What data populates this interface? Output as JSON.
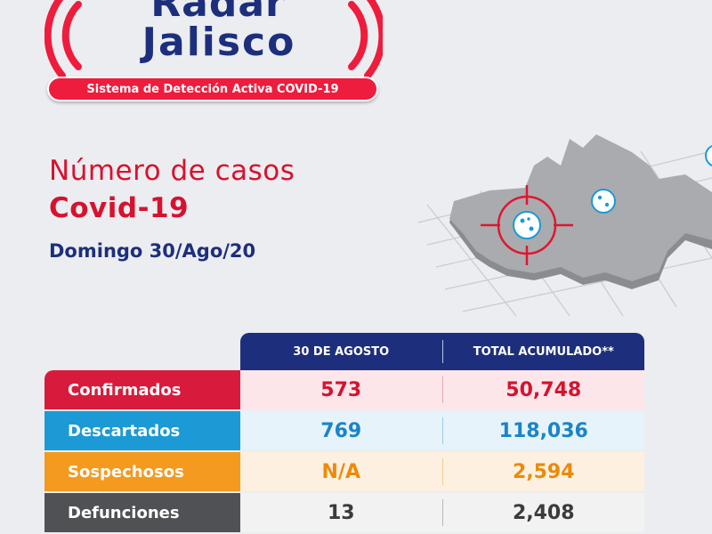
{
  "logo": {
    "word1": "Radar",
    "word2": "Jalisco",
    "tagline": "Sistema de Detección Activa COVID-19"
  },
  "heading": {
    "line1": "Número de casos",
    "line2": "Covid-19",
    "date": "Domingo 30/Ago/20"
  },
  "table": {
    "headers": [
      "30 DE AGOSTO",
      "TOTAL ACUMULADO**"
    ],
    "rows": [
      {
        "label": "Confirmados",
        "day": "573",
        "total": "50,748"
      },
      {
        "label": "Descartados",
        "day": "769",
        "total": "118,036"
      },
      {
        "label": "Sospechosos",
        "day": "N/A",
        "total": "2,594"
      },
      {
        "label": "Defunciones",
        "day": "13",
        "total": "2,408"
      }
    ]
  },
  "colors": {
    "brand_red": "#d6122f",
    "brand_blue": "#1d2f7c",
    "confirmados": "#d81b3d",
    "descartados": "#1b9ad6",
    "sospechosos": "#f39a1f",
    "defunciones": "#505154"
  },
  "icons": [
    "radar-waves-icon",
    "map-jalisco-icon",
    "crosshair-target-icon",
    "virus-icon"
  ]
}
